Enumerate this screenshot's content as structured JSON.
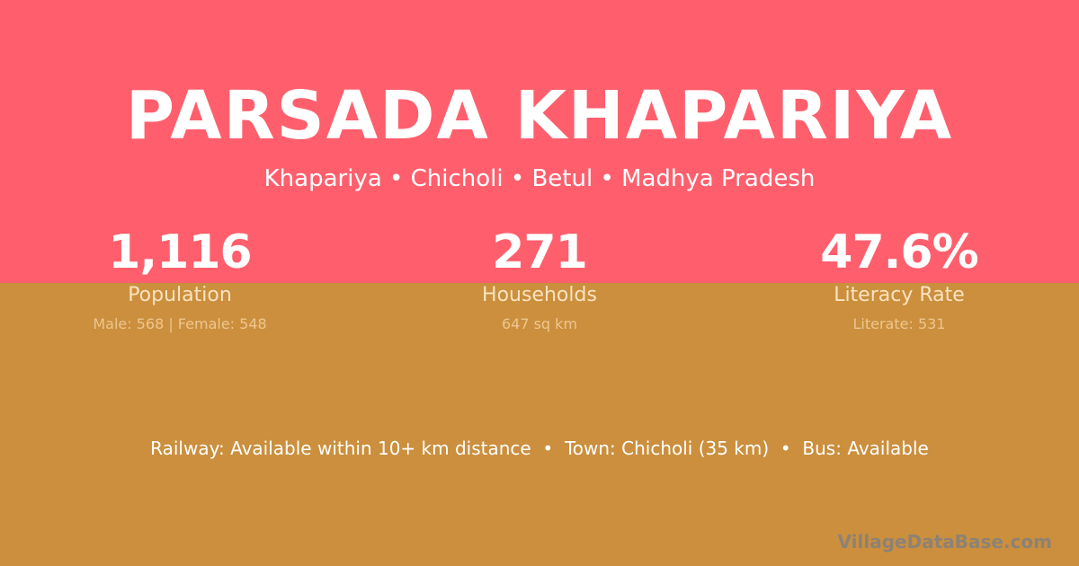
{
  "colors": {
    "top_background": "#FF5F6D",
    "bottom_background": "#CB8F3D"
  },
  "title": "PARSADA KHAPARIYA",
  "subtitle": "Khapariya • Chicholi • Betul • Madhya Pradesh",
  "stats": [
    {
      "value": "1,116",
      "label": "Population",
      "detail": "Male: 568 | Female: 548"
    },
    {
      "value": "271",
      "label": "Households",
      "detail": "647 sq km"
    },
    {
      "value": "47.6%",
      "label": "Literacy Rate",
      "detail": "Literate: 531"
    }
  ],
  "info_line": "Railway: Available within 10+ km distance  •  Town: Chicholi (35 km)  •  Bus: Available",
  "brand": "VillageDataBase.com"
}
